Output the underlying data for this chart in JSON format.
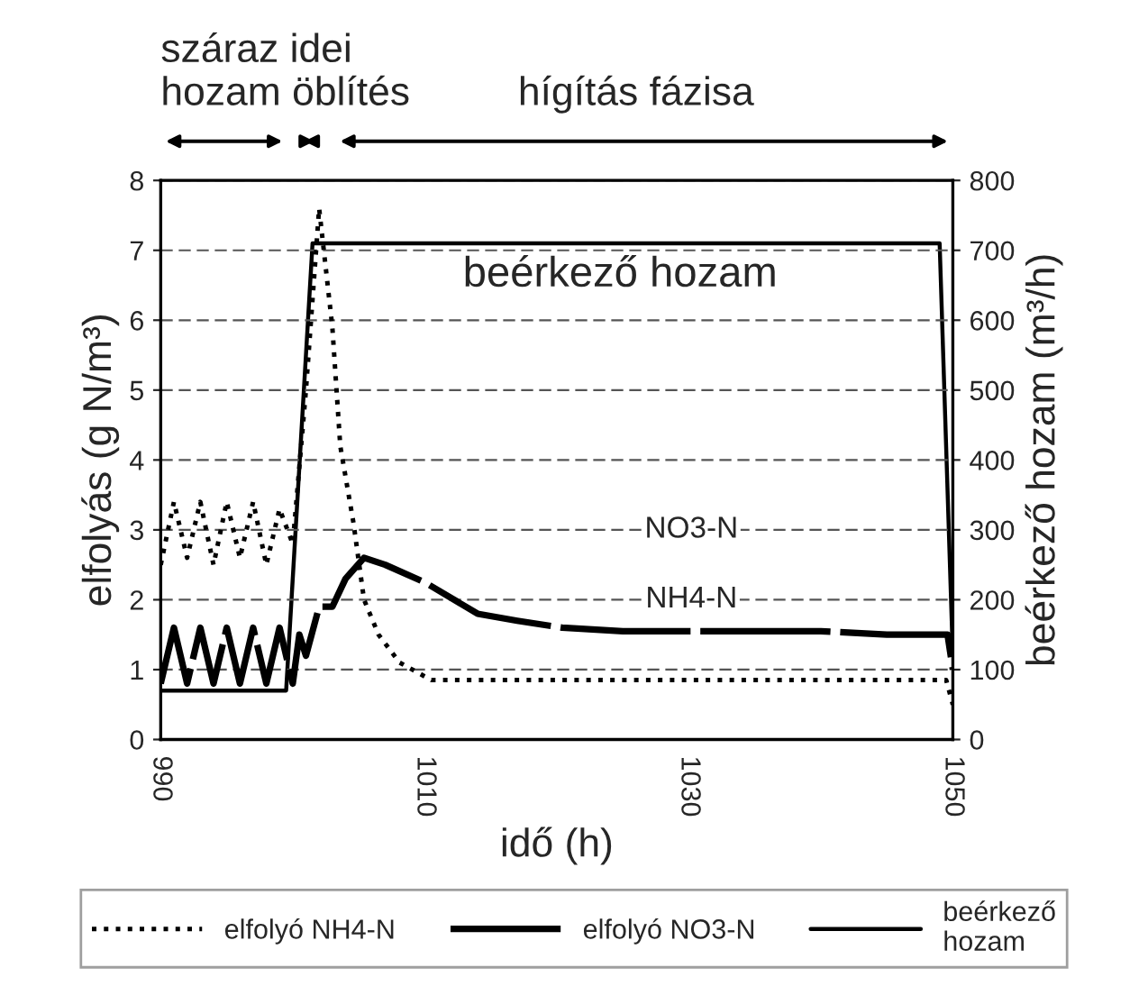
{
  "chart_data": {
    "type": "line",
    "xlabel": "idő (h)",
    "ylabel": "elfolyás (g N/m³)",
    "y2label": "beérkező hozam (m³/h)",
    "xlim": [
      990,
      1050
    ],
    "xticks": [
      990,
      1010,
      1030,
      1050
    ],
    "ylim": [
      0,
      8
    ],
    "yticks": [
      0,
      1,
      2,
      3,
      4,
      5,
      6,
      7,
      8
    ],
    "y2lim": [
      0,
      800
    ],
    "y2ticks": [
      0,
      100,
      200,
      300,
      400,
      500,
      600,
      700,
      800
    ],
    "grid": "y",
    "legend": "bottom",
    "series": [
      {
        "name": "elfolyó NH4-N",
        "color": "#000000",
        "line_style": "dotted",
        "x": [
          990,
          991,
          992,
          993,
          994,
          995,
          996,
          997,
          998,
          999,
          1000,
          1001,
          1002,
          1003,
          1003.6,
          1004.6,
          1005.4,
          1006.5,
          1008.1,
          1010.5,
          1015,
          1020,
          1030,
          1040,
          1049.5,
          1050
        ],
        "values": [
          2.5,
          3.4,
          2.6,
          3.4,
          2.5,
          3.4,
          2.6,
          3.4,
          2.5,
          3.3,
          2.8,
          5.0,
          7.6,
          5.9,
          4.2,
          3.1,
          2.0,
          1.5,
          1.1,
          0.85,
          0.85,
          0.85,
          0.85,
          0.85,
          0.85,
          0.5
        ]
      },
      {
        "name": "elfolyó NO3-N",
        "color": "#000000",
        "line_style": "dashed",
        "x": [
          990,
          991,
          992,
          993,
          994,
          995,
          996,
          997,
          998,
          999,
          1000,
          1000.5,
          1001,
          1002,
          1003,
          1004,
          1005.4,
          1007,
          1010,
          1014,
          1017,
          1020.4,
          1025,
          1030,
          1035,
          1040,
          1045,
          1049.6,
          1050
        ],
        "values": [
          0.8,
          1.6,
          0.8,
          1.6,
          0.8,
          1.6,
          0.8,
          1.6,
          0.8,
          1.6,
          0.8,
          1.5,
          1.2,
          1.9,
          1.9,
          2.3,
          2.6,
          2.5,
          2.25,
          1.8,
          1.7,
          1.6,
          1.55,
          1.55,
          1.55,
          1.55,
          1.5,
          1.5,
          1.0
        ]
      },
      {
        "name": "beérkező\nhozam",
        "color": "#000000",
        "line_style": "solid",
        "axis": "y2",
        "x": [
          990,
          999.5,
          1001.5,
          1049,
          1050
        ],
        "values": [
          70,
          70,
          710,
          710,
          120
        ]
      }
    ],
    "annotations": [
      "száraz idei\nhozam öblítés",
      "hígítás fázisa",
      "beérkező hozam",
      "NO3-N",
      "NH4-N"
    ]
  }
}
